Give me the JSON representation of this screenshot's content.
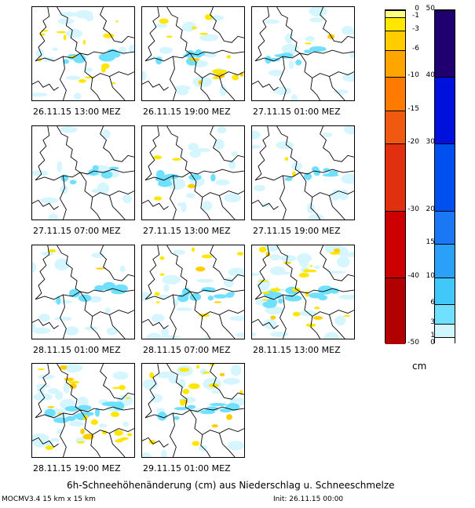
{
  "chart_data": {
    "type": "heatmap",
    "title": "6h-Schneehöhenänderung (cm) aus Niederschlag u. Schneeschmelze",
    "panels": [
      {
        "time": "26.11.15 13:00 MEZ",
        "loss": 0.35,
        "gain": 0.25
      },
      {
        "time": "26.11.15 19:00 MEZ",
        "loss": 0.35,
        "gain": 0.25
      },
      {
        "time": "27.11.15 01:00 MEZ",
        "loss": 0.05,
        "gain": 0.3
      },
      {
        "time": "27.11.15 07:00 MEZ",
        "loss": 0.0,
        "gain": 0.25
      },
      {
        "time": "27.11.15 13:00 MEZ",
        "loss": 0.1,
        "gain": 0.3
      },
      {
        "time": "27.11.15 19:00 MEZ",
        "loss": 0.05,
        "gain": 0.3
      },
      {
        "time": "28.11.15 01:00 MEZ",
        "loss": 0.05,
        "gain": 0.3
      },
      {
        "time": "28.11.15 07:00 MEZ",
        "loss": 0.25,
        "gain": 0.35
      },
      {
        "time": "28.11.15 13:00 MEZ",
        "loss": 0.55,
        "gain": 0.65
      },
      {
        "time": "28.11.15 19:00 MEZ",
        "loss": 0.6,
        "gain": 0.6
      },
      {
        "time": "29.11.15 01:00 MEZ",
        "loss": 0.4,
        "gain": 0.5
      }
    ],
    "neg_scale": {
      "ticks": [
        "0",
        "-1",
        "-3",
        "-6",
        "-10",
        "-15",
        "-20",
        "-30",
        "-40",
        "-50"
      ],
      "values": [
        0,
        -1,
        -3,
        -6,
        -10,
        -15,
        -20,
        -30,
        -40,
        -50
      ],
      "colors": [
        "#ffff80",
        "#ffe600",
        "#ffcc00",
        "#ffa500",
        "#ff7a00",
        "#f05a10",
        "#e03010",
        "#cc0000",
        "#b00000"
      ]
    },
    "pos_scale": {
      "ticks": [
        "50",
        "40",
        "30",
        "20",
        "15",
        "10",
        "6",
        "3",
        "1",
        "0"
      ],
      "values": [
        50,
        40,
        30,
        20,
        15,
        10,
        6,
        3,
        1,
        0
      ],
      "colors": [
        "#200070",
        "#0010dd",
        "#0050f0",
        "#1a78f5",
        "#2aa0f8",
        "#40c8fa",
        "#70e0ff",
        "#d0f6ff",
        "#ffffff"
      ]
    },
    "unit": "cm"
  },
  "footer": {
    "model": "MOCMV3.4 15 km x 15 km",
    "init": "Init: 26.11.15 00:00"
  }
}
